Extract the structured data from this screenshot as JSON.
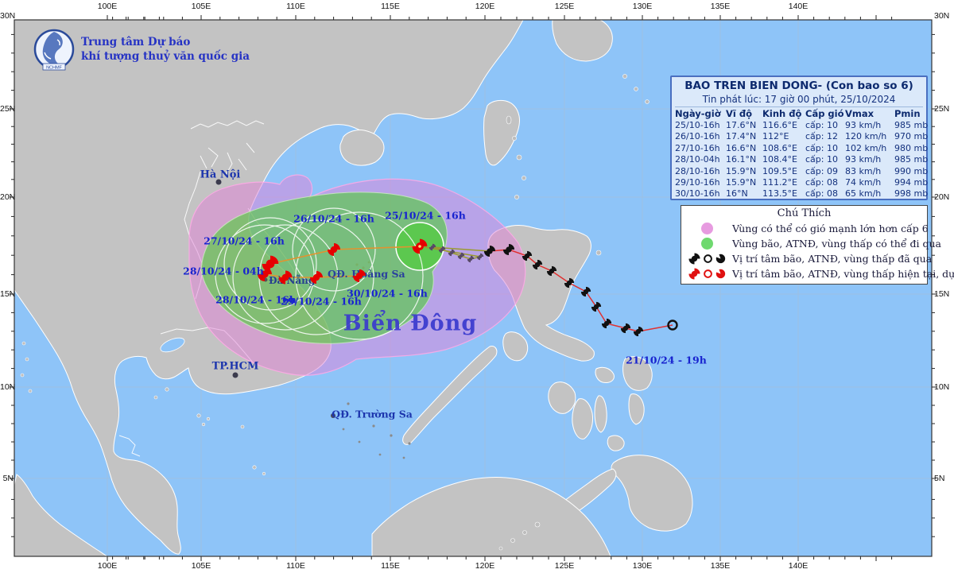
{
  "agency": {
    "line1": "Trung tâm Dự báo",
    "line2": "khí tượng thuỷ văn quốc gia",
    "logo_text": "NCHMF"
  },
  "title_box": {
    "title": "BAO TREN BIEN DONG- (Con bao so 6)",
    "issued": "Tin phát lúc: 17 giờ 00 phút, 25/10/2024",
    "columns": [
      "Ngày-giờ",
      "Vĩ độ",
      "Kinh độ",
      "Cấp gió",
      "Vmax",
      "Pmin"
    ],
    "rows": [
      [
        "25/10-16h",
        "17.6°N",
        "116.6°E",
        "cấp: 10",
        "93 km/h",
        "985 mb"
      ],
      [
        "26/10-16h",
        "17.4°N",
        "112°E",
        "cấp: 12",
        "120 km/h",
        "970 mb"
      ],
      [
        "27/10-16h",
        "16.6°N",
        "108.6°E",
        "cấp: 10",
        "102 km/h",
        "980 mb"
      ],
      [
        "28/10-04h",
        "16.1°N",
        "108.4°E",
        "cấp: 10",
        "93 km/h",
        "985 mb"
      ],
      [
        "28/10-16h",
        "15.9°N",
        "109.5°E",
        "cấp: 09",
        "83 km/h",
        "990 mb"
      ],
      [
        "29/10-16h",
        "15.9°N",
        "111.2°E",
        "cấp: 08",
        "74 km/h",
        "994 mb"
      ],
      [
        "30/10-16h",
        "16°N",
        "113.5°E",
        "cấp: 08",
        "65 km/h",
        "998 mb"
      ]
    ]
  },
  "legend": {
    "title": "Chú Thích",
    "items": [
      {
        "symbol": "pink-zone",
        "label": "Vùng có thể có gió mạnh lớn hơn cấp 6"
      },
      {
        "symbol": "green-zone",
        "label": "Vùng bão, ATNĐ, vùng thấp có thể đi qua"
      },
      {
        "symbol": "past-marks",
        "label": "Vị trí tâm bão, ATNĐ, vùng thấp đã qua"
      },
      {
        "symbol": "future-marks",
        "label": "Vị trí tâm bão, ATNĐ, vùng thấp hiện tại, dự báo"
      }
    ]
  },
  "map_labels": {
    "sea": "Biển Đông",
    "hanoi": "Hà Nội",
    "hcmc": "TP.HCM",
    "danang": "Đà Nẵng",
    "hoang_sa": "QĐ. Hoàng Sa",
    "truong_sa": "QĐ. Trường Sa"
  },
  "track": {
    "start_label": "21/10/24 - 19h",
    "forecast_labels": [
      "25/10/24 - 16h",
      "26/10/24 - 16h",
      "27/10/24 - 16h",
      "28/10/24 - 04h",
      "28/10/24 - 16h",
      "29/10/24 - 16h",
      "30/10/24 - 16h"
    ]
  },
  "axes": {
    "lon": [
      "100E",
      "105E",
      "110E",
      "115E",
      "120E",
      "125E",
      "130E",
      "135E",
      "140E"
    ],
    "lat": [
      "30N",
      "25N",
      "20N",
      "15N",
      "10N",
      "5N"
    ]
  },
  "colors": {
    "sea": "#8ec4f8",
    "land": "#c3c3c3",
    "danger_zone_pink": "#e182d7",
    "pass_zone_green": "#50cd3c",
    "past_track": "#e03030",
    "forecast_track": "#e2932f",
    "current_symbol_red": "#e60000",
    "past_symbol_black": "#111111",
    "label_blue": "#1823cf"
  }
}
